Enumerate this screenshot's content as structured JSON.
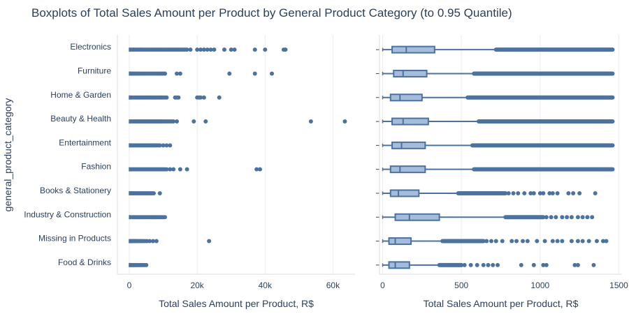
{
  "chart_data": {
    "type": "boxplot",
    "title": "Boxplots of Total Sales Amount per Product by General Product Category (to 0.95 Quantile)",
    "ylabel": "general_product_category",
    "categories": [
      "Electronics",
      "Furniture",
      "Home & Garden",
      "Beauty & Health",
      "Entertainment",
      "Fashion",
      "Books & Stationery",
      "Industry & Construction",
      "Missing in Products",
      "Food & Drinks"
    ],
    "colors": {
      "marker": "#4c72a0",
      "box_fill": "#a5bcda",
      "grid": "#ebebeb",
      "axis_line": "#dddddd"
    },
    "panels": [
      {
        "xlabel": "Total Sales Amount per Product, R$",
        "xlim": [
          -3500,
          66500
        ],
        "xticks": [
          0,
          20000,
          40000,
          60000
        ],
        "xtick_labels": [
          "0",
          "20k",
          "40k",
          "60k"
        ],
        "series": [
          {
            "category": "Electronics",
            "min": 0,
            "q1": 60,
            "median": 150,
            "q3": 330,
            "max": 720,
            "outliers": [
              900,
              1200,
              1500,
              2000,
              2400,
              2800,
              3200,
              3600,
              4000,
              4500,
              5000,
              5500,
              6000,
              6500,
              7000,
              7500,
              8000,
              8500,
              9000,
              9500,
              10000,
              10500,
              11000,
              11500,
              12000,
              12500,
              13000,
              13500,
              14000,
              14500,
              15000,
              15500,
              16000,
              16500,
              17000,
              18000,
              20000,
              21000,
              22000,
              23000,
              24000,
              25000,
              28000,
              30000,
              31000,
              37000,
              40000,
              45500,
              46000
            ]
          },
          {
            "category": "Furniture",
            "min": 0,
            "q1": 70,
            "median": 130,
            "q3": 280,
            "max": 580,
            "outliers": [
              800,
              1100,
              1500,
              1900,
              2300,
              2700,
              3100,
              3600,
              4100,
              4600,
              5100,
              5600,
              6100,
              6600,
              7100,
              7600,
              8100,
              8600,
              9100,
              9600,
              10000,
              10500,
              14000,
              15000,
              29500,
              37000,
              42000
            ]
          },
          {
            "category": "Home & Garden",
            "min": 0,
            "q1": 50,
            "median": 110,
            "q3": 250,
            "max": 540,
            "outliers": [
              800,
              1200,
              1600,
              2000,
              2400,
              2800,
              3200,
              3600,
              4000,
              4400,
              4800,
              5200,
              5600,
              6000,
              6400,
              6800,
              7200,
              7600,
              8000,
              8400,
              8800,
              9200,
              9600,
              10000,
              10500,
              11000,
              13500,
              14000,
              14500,
              20000,
              20500,
              21000,
              22000,
              26500
            ]
          },
          {
            "category": "Beauty & Health",
            "min": 0,
            "q1": 60,
            "median": 130,
            "q3": 290,
            "max": 610,
            "outliers": [
              800,
              1200,
              1600,
              2000,
              2400,
              2800,
              3200,
              3600,
              4000,
              4400,
              4800,
              5200,
              5600,
              6000,
              6400,
              6800,
              7200,
              7600,
              8000,
              8400,
              8800,
              9200,
              9600,
              10000,
              10500,
              11000,
              11500,
              12000,
              12500,
              13000,
              14000,
              19000,
              22500,
              53500,
              63500
            ]
          },
          {
            "category": "Entertainment",
            "min": 0,
            "q1": 60,
            "median": 120,
            "q3": 270,
            "max": 570,
            "outliers": [
              800,
              1200,
              1600,
              2000,
              2400,
              2800,
              3200,
              3600,
              4000,
              4400,
              4800,
              5200,
              5600,
              6000,
              6400,
              6800,
              7200,
              7600,
              8000,
              8500,
              9000,
              10000,
              11000,
              12000
            ]
          },
          {
            "category": "Fashion",
            "min": 0,
            "q1": 50,
            "median": 110,
            "q3": 270,
            "max": 580,
            "outliers": [
              800,
              1200,
              1600,
              2000,
              2400,
              2800,
              3200,
              3600,
              4000,
              4400,
              4800,
              5200,
              5600,
              6000,
              6400,
              6800,
              7200,
              7600,
              8000,
              8400,
              8800,
              9200,
              9600,
              10000,
              10500,
              11000,
              12000,
              13000,
              15000,
              17000,
              37500,
              38500
            ]
          },
          {
            "category": "Books & Stationery",
            "min": 0,
            "q1": 50,
            "median": 100,
            "q3": 230,
            "max": 480,
            "outliers": [
              700,
              1000,
              1300,
              1600,
              2000,
              2400,
              2800,
              3200,
              3600,
              4000,
              4400,
              4800,
              5200,
              5600,
              6000,
              6400,
              6800,
              7200,
              9000
            ]
          },
          {
            "category": "Industry & Construction",
            "min": 0,
            "q1": 80,
            "median": 170,
            "q3": 360,
            "max": 780,
            "outliers": [
              1000,
              1300,
              1600,
              2000,
              2400,
              2800,
              3200,
              3600,
              4000,
              4400,
              4800,
              5200,
              5600,
              6000,
              6400,
              6800,
              7200,
              7600,
              8000,
              8500,
              9000,
              9500,
              10000,
              10500
            ]
          },
          {
            "category": "Missing in Products",
            "min": 0,
            "q1": 40,
            "median": 80,
            "q3": 180,
            "max": 380,
            "outliers": [
              600,
              900,
              1200,
              1500,
              1800,
              2100,
              2500,
              2900,
              3300,
              3700,
              4200,
              4700,
              5200,
              6000,
              7000,
              8000,
              23500
            ]
          },
          {
            "category": "Food & Drinks",
            "min": 0,
            "q1": 40,
            "median": 80,
            "q3": 170,
            "max": 360,
            "outliers": [
              600,
              900,
              1200,
              1500,
              1800,
              2100,
              2400,
              2800,
              3200,
              3600,
              4000,
              4500,
              5000
            ]
          }
        ]
      },
      {
        "xlabel": "Total Sales Amount per Product, R$",
        "xlim": [
          -20,
          1520
        ],
        "xticks": [
          0,
          500,
          1000,
          1500
        ],
        "xtick_labels": [
          "0",
          "500",
          "1000",
          "1500"
        ],
        "series": [
          {
            "category": "Electronics",
            "min": 0,
            "q1": 60,
            "median": 150,
            "q3": 330,
            "max": 720,
            "outlier_band": [
              720,
              1460
            ],
            "outliers": []
          },
          {
            "category": "Furniture",
            "min": 0,
            "q1": 70,
            "median": 130,
            "q3": 280,
            "max": 580,
            "outlier_band": [
              580,
              1460
            ],
            "outliers": []
          },
          {
            "category": "Home & Garden",
            "min": 0,
            "q1": 50,
            "median": 110,
            "q3": 250,
            "max": 540,
            "outlier_band": [
              540,
              1460
            ],
            "outliers": []
          },
          {
            "category": "Beauty & Health",
            "min": 0,
            "q1": 60,
            "median": 130,
            "q3": 290,
            "max": 610,
            "outlier_band": [
              610,
              1460
            ],
            "outliers": []
          },
          {
            "category": "Entertainment",
            "min": 0,
            "q1": 60,
            "median": 120,
            "q3": 270,
            "max": 570,
            "outlier_band": [
              570,
              1460
            ],
            "outliers": []
          },
          {
            "category": "Fashion",
            "min": 0,
            "q1": 50,
            "median": 110,
            "q3": 270,
            "max": 580,
            "outlier_band": [
              580,
              1460
            ],
            "outliers": []
          },
          {
            "category": "Books & Stationery",
            "min": 0,
            "q1": 50,
            "median": 100,
            "q3": 230,
            "max": 480,
            "outlier_band": [
              480,
              780
            ],
            "outliers": [
              800,
              830,
              860,
              900,
              940,
              960,
              1000,
              1020,
              1060,
              1080,
              1110,
              1180,
              1210,
              1250,
              1350
            ]
          },
          {
            "category": "Industry & Construction",
            "min": 0,
            "q1": 80,
            "median": 170,
            "q3": 360,
            "max": 780,
            "outlier_band": [
              780,
              1020
            ],
            "outliers": [
              1040,
              1070,
              1100,
              1140,
              1170,
              1200,
              1240,
              1270,
              1300,
              1330
            ]
          },
          {
            "category": "Missing in Products",
            "min": 0,
            "q1": 40,
            "median": 80,
            "q3": 180,
            "max": 380,
            "outlier_band": [
              380,
              640
            ],
            "outliers": [
              660,
              690,
              720,
              760,
              820,
              850,
              890,
              920,
              980,
              1030,
              1080,
              1110,
              1140,
              1200,
              1240,
              1270,
              1310,
              1360,
              1400,
              1420
            ]
          },
          {
            "category": "Food & Drinks",
            "min": 0,
            "q1": 40,
            "median": 80,
            "q3": 170,
            "max": 360,
            "outlier_band": [
              360,
              500
            ],
            "outliers": [
              520,
              560,
              600,
              640,
              670,
              700,
              730,
              880,
              960,
              1020,
              1040,
              1220,
              1240,
              1340
            ]
          }
        ]
      }
    ]
  }
}
